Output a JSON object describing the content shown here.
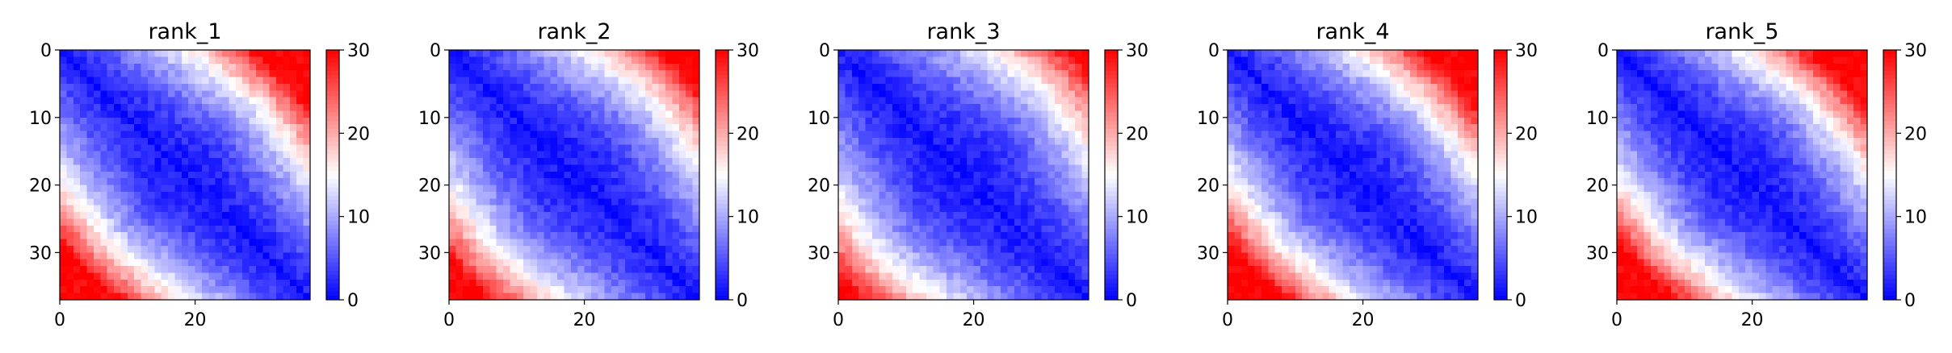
{
  "chart_data": [
    {
      "type": "heatmap",
      "title": "rank_1",
      "x_ticks": [
        0,
        20
      ],
      "y_ticks": [
        0,
        10,
        20,
        30
      ],
      "shape": [
        37,
        37
      ],
      "colormap": "bwr",
      "clim": [
        0,
        30
      ],
      "colorbar_ticks": [
        0,
        10,
        20,
        30
      ],
      "diag_width": 12,
      "corner_value": 30
    },
    {
      "type": "heatmap",
      "title": "rank_2",
      "x_ticks": [
        0,
        20
      ],
      "y_ticks": [
        0,
        10,
        20,
        30
      ],
      "shape": [
        37,
        37
      ],
      "colormap": "bwr",
      "clim": [
        0,
        30
      ],
      "colorbar_ticks": [
        0,
        10,
        20,
        30
      ],
      "diag_width": 13,
      "corner_value": 30
    },
    {
      "type": "heatmap",
      "title": "rank_3",
      "x_ticks": [
        0,
        20
      ],
      "y_ticks": [
        0,
        10,
        20,
        30
      ],
      "shape": [
        37,
        37
      ],
      "colormap": "bwr",
      "clim": [
        0,
        30
      ],
      "colorbar_ticks": [
        0,
        10,
        20,
        30
      ],
      "diag_width": 14,
      "corner_value": 30
    },
    {
      "type": "heatmap",
      "title": "rank_4",
      "x_ticks": [
        0,
        20
      ],
      "y_ticks": [
        0,
        10,
        20,
        30
      ],
      "shape": [
        37,
        37
      ],
      "colormap": "bwr",
      "clim": [
        0,
        30
      ],
      "colorbar_ticks": [
        0,
        10,
        20,
        30
      ],
      "diag_width": 12,
      "corner_value": 30
    },
    {
      "type": "heatmap",
      "title": "rank_5",
      "x_ticks": [
        0,
        20
      ],
      "y_ticks": [
        0,
        10,
        20,
        30
      ],
      "shape": [
        37,
        37
      ],
      "colormap": "bwr",
      "clim": [
        0,
        30
      ],
      "colorbar_ticks": [
        0,
        10,
        20,
        30
      ],
      "diag_width": 12,
      "corner_value": 30
    }
  ]
}
